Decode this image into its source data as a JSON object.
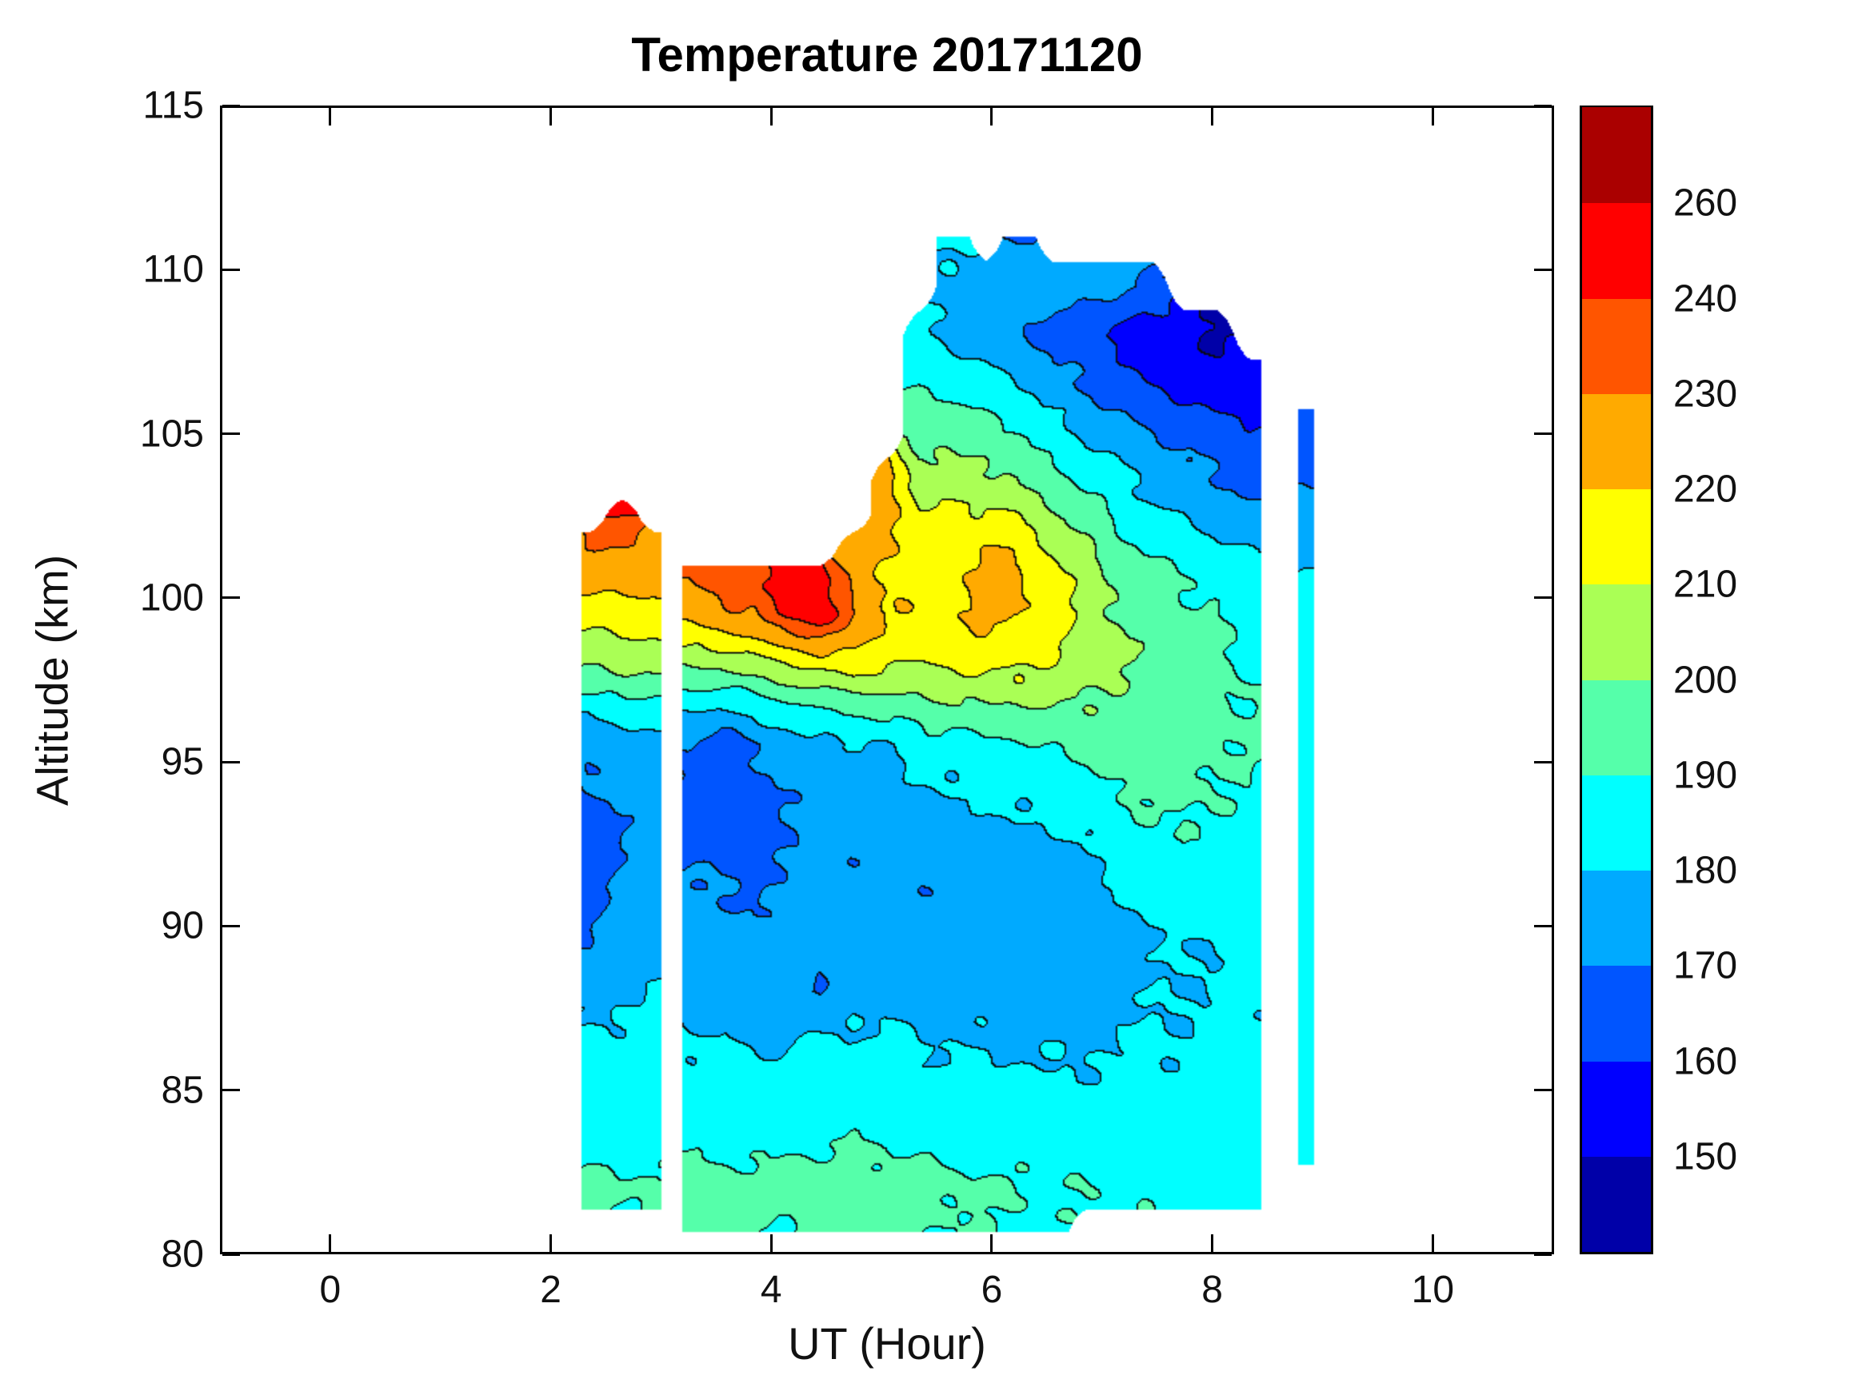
{
  "chart_data": {
    "type": "heatmap",
    "title": "Temperature 20171120",
    "xlabel": "UT (Hour)",
    "ylabel": "Altitude (km)",
    "xlim": [
      -1,
      11.1
    ],
    "ylim": [
      80,
      115
    ],
    "xticks": [
      "0",
      "2",
      "4",
      "6",
      "8",
      "10"
    ],
    "xtick_values": [
      0,
      2,
      4,
      6,
      8,
      10
    ],
    "yticks": [
      "80",
      "85",
      "90",
      "95",
      "100",
      "105",
      "110",
      "115"
    ],
    "ytick_values": [
      80,
      85,
      90,
      95,
      100,
      105,
      110,
      115
    ],
    "grid_on": false,
    "legend_position": "right-colorbar",
    "colorbar": {
      "labels": [
        "150",
        "160",
        "170",
        "180",
        "190",
        "200",
        "210",
        "220",
        "230",
        "240",
        "260"
      ],
      "levels": [
        150,
        160,
        170,
        180,
        190,
        200,
        210,
        220,
        230,
        240,
        260
      ],
      "band_colors": [
        "#0000A8",
        "#0000FF",
        "#0055FF",
        "#00AAFF",
        "#00FFFF",
        "#55FFAA",
        "#AAFF55",
        "#FFFF00",
        "#FFAA00",
        "#FF5500",
        "#FF0000",
        "#AA0000"
      ]
    },
    "grid": {
      "hours": [
        2.35,
        2.65,
        2.95,
        3.25,
        3.55,
        3.85,
        4.15,
        4.45,
        4.75,
        5.05,
        5.35,
        5.65,
        5.95,
        6.25,
        6.55,
        6.85,
        7.15,
        7.45,
        7.75,
        8.05,
        8.35,
        8.85
      ],
      "altitudes_km": [
        80.7,
        82,
        83.5,
        85,
        86.5,
        88,
        89.5,
        91,
        92.5,
        94,
        95.5,
        96.5,
        97.5,
        98.5,
        99.5,
        100.5,
        101.5,
        102.5,
        103.5,
        105,
        106.5,
        108,
        109.5,
        111
      ],
      "gaps_hours": [
        [
          3.0,
          3.2
        ],
        [
          8.45,
          8.78
        ]
      ],
      "domain_hours": [
        2.28,
        8.92
      ],
      "temperature_K": [
        [
          null,
          192,
          186,
          184,
          182,
          176,
          170,
          167,
          165,
          168,
          172,
          182,
          196,
          206,
          214,
          224,
          230,
          null,
          null,
          null,
          null,
          null,
          null,
          null
        ],
        [
          null,
          191,
          187,
          185,
          183,
          179,
          175,
          172,
          170,
          172,
          175,
          184,
          197,
          208,
          216,
          224,
          230,
          241,
          null,
          null,
          null,
          null,
          null,
          null
        ],
        [
          null,
          192,
          188,
          186,
          184,
          181,
          178,
          175,
          173,
          174,
          177,
          186,
          198,
          207,
          215,
          224,
          226,
          null,
          null,
          null,
          null,
          null,
          null,
          null
        ],
        [
          193,
          195,
          188,
          185,
          181,
          177,
          174,
          172,
          169,
          167,
          170,
          180,
          194,
          210,
          224,
          231,
          null,
          null,
          null,
          null,
          null,
          null,
          null,
          null
        ],
        [
          192,
          194,
          187,
          184,
          180,
          176,
          173,
          170,
          166,
          162,
          165,
          178,
          194,
          212,
          228,
          236,
          null,
          null,
          null,
          null,
          null,
          null,
          null,
          null
        ],
        [
          190,
          193,
          186,
          183,
          179,
          175,
          172,
          170,
          168,
          166,
          170,
          182,
          198,
          216,
          230,
          236,
          null,
          null,
          null,
          null,
          null,
          null,
          null,
          null
        ],
        [
          191,
          194,
          187,
          184,
          180,
          176,
          173,
          171,
          170,
          172,
          175,
          185,
          202,
          220,
          244,
          246,
          null,
          null,
          null,
          null,
          null,
          null,
          null,
          null
        ],
        [
          192,
          195,
          188,
          185,
          181,
          168,
          174,
          172,
          171,
          173,
          177,
          188,
          205,
          224,
          248,
          242,
          null,
          null,
          null,
          null,
          null,
          null,
          null,
          null
        ],
        [
          193,
          196,
          189,
          186,
          182,
          178,
          175,
          173,
          172,
          174,
          179,
          190,
          208,
          222,
          232,
          228,
          222,
          null,
          null,
          null,
          null,
          null,
          null,
          null
        ],
        [
          192,
          195,
          188,
          185,
          181,
          177,
          174,
          172,
          173,
          176,
          181,
          192,
          206,
          216,
          220,
          218,
          222,
          226,
          224,
          null,
          null,
          null,
          null,
          null
        ],
        [
          191,
          194,
          187,
          184,
          180,
          176,
          173,
          172,
          174,
          178,
          184,
          194,
          206,
          214,
          217,
          216,
          215,
          212,
          206,
          197,
          188,
          182,
          null,
          null
        ],
        [
          190,
          193,
          186,
          183,
          179,
          175,
          173,
          172,
          175,
          180,
          186,
          196,
          207,
          215,
          218,
          217,
          216,
          213,
          205,
          195,
          186,
          178,
          176,
          183
        ],
        [
          189,
          192,
          185,
          183,
          179,
          175,
          174,
          173,
          176,
          182,
          188,
          198,
          208,
          216,
          222,
          224,
          220,
          212,
          204,
          193,
          184,
          174,
          178,
          null
        ],
        [
          188,
          191,
          185,
          182,
          178,
          175,
          174,
          174,
          177,
          183,
          189,
          199,
          209,
          216,
          221,
          222,
          218,
          209,
          199,
          189,
          179,
          170,
          176,
          170
        ],
        [
          187,
          190,
          184,
          182,
          178,
          176,
          175,
          175,
          178,
          184,
          190,
          198,
          206,
          212,
          215,
          214,
          210,
          203,
          195,
          185,
          175,
          166,
          176,
          null
        ],
        [
          null,
          189,
          184,
          182,
          179,
          177,
          176,
          177,
          180,
          186,
          192,
          198,
          203,
          206,
          207,
          206,
          202,
          195,
          189,
          179,
          169,
          162,
          174,
          null
        ],
        [
          null,
          188,
          184,
          182,
          180,
          178,
          178,
          179,
          184,
          191,
          193,
          197,
          200,
          201,
          200,
          198,
          194,
          188,
          183,
          174,
          165,
          158,
          173,
          null
        ],
        [
          null,
          188,
          184,
          183,
          181,
          179,
          179,
          184,
          186,
          192,
          194,
          196,
          198,
          198,
          196,
          193,
          189,
          183,
          178,
          169,
          159,
          154,
          170,
          null
        ],
        [
          null,
          187,
          184,
          183,
          181,
          180,
          180,
          186,
          191,
          192,
          194,
          195,
          196,
          195,
          193,
          190,
          185,
          180,
          175,
          166,
          156,
          152,
          null,
          null
        ],
        [
          null,
          186,
          184,
          183,
          182,
          181,
          181,
          183,
          186,
          190,
          192,
          193,
          193,
          192,
          190,
          187,
          182,
          176,
          171,
          163,
          153,
          149,
          null,
          null
        ],
        [
          null,
          187,
          185,
          184,
          183,
          182,
          182,
          184,
          186,
          189,
          190,
          190,
          189,
          188,
          186,
          183,
          179,
          173,
          168,
          161,
          156,
          null,
          null,
          null
        ],
        [
          null,
          null,
          186,
          185,
          184,
          183,
          183,
          184,
          185,
          186,
          186,
          186,
          185,
          184,
          183,
          181,
          178,
          174,
          170,
          166,
          null,
          null,
          null,
          null
        ]
      ]
    }
  },
  "figure": {
    "background_color": "#FFFFFF",
    "axis_color": "#000000",
    "contour_line_color": "#000000"
  }
}
